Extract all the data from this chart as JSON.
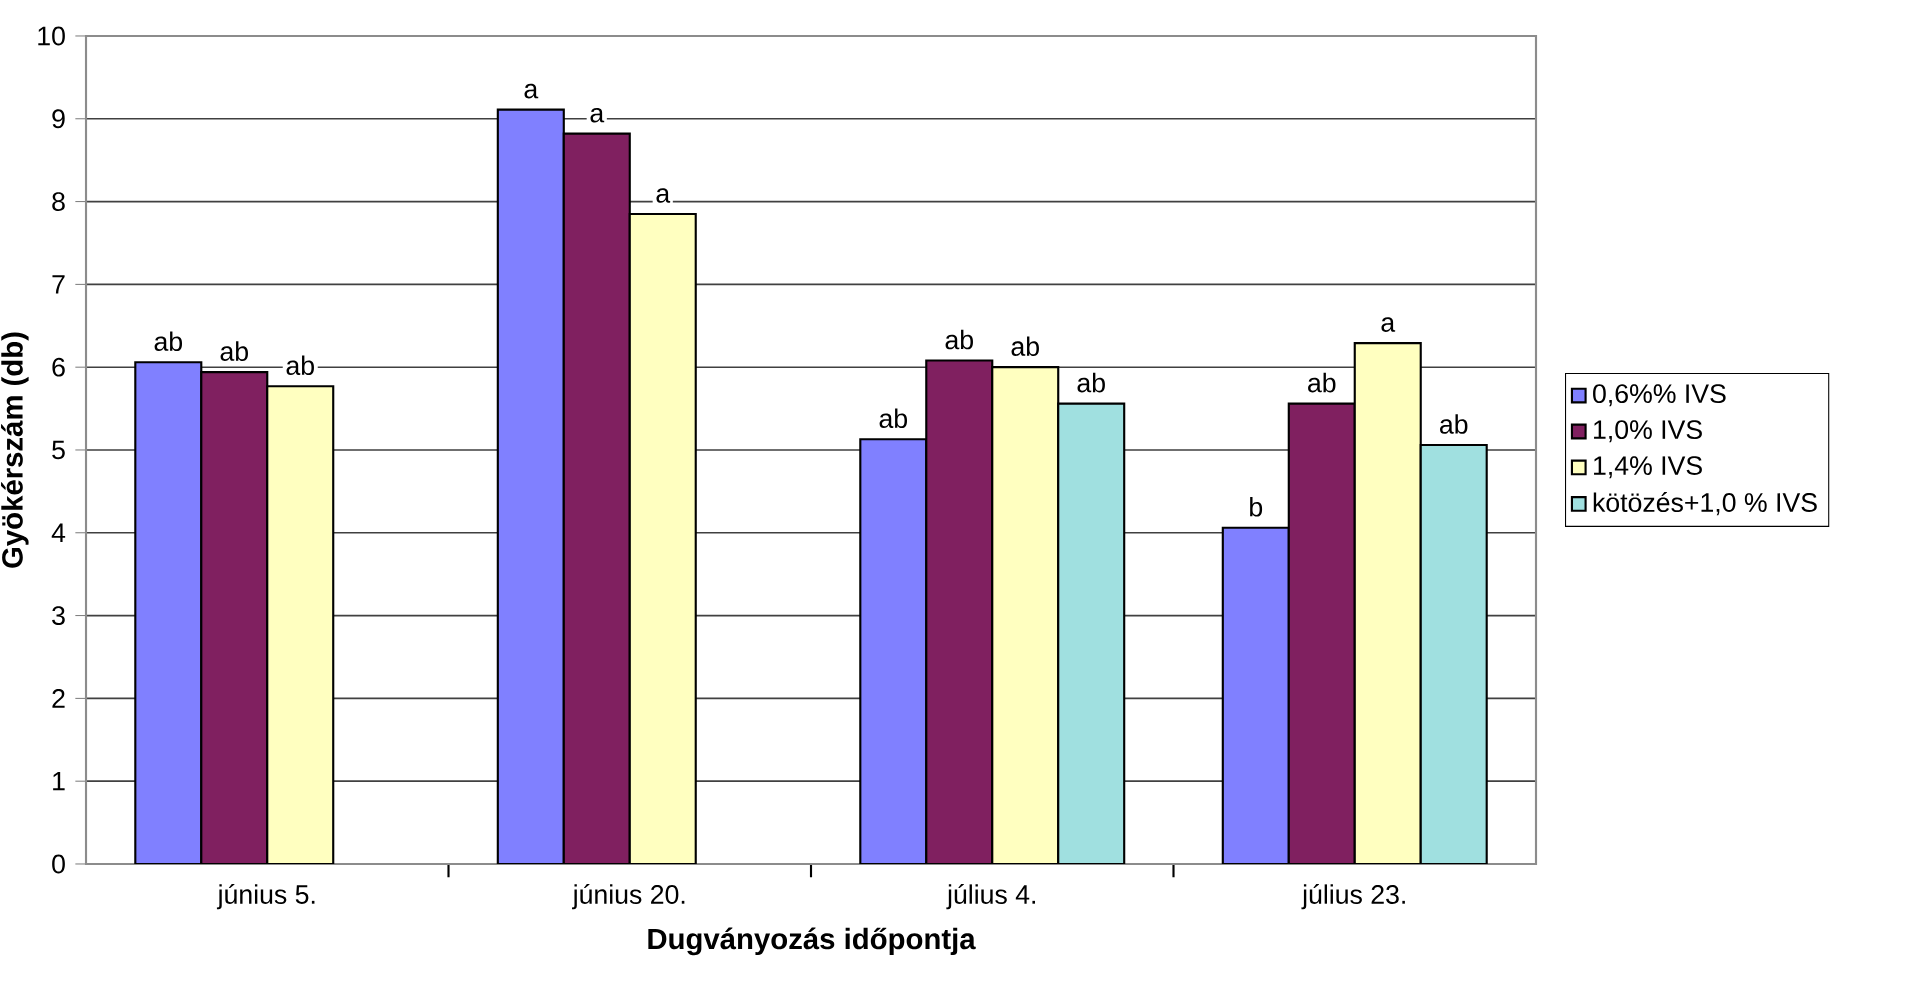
{
  "chart_data": {
    "type": "bar",
    "xlabel": "Dugványozás időpontja",
    "ylabel": "Gyökérszám (db)",
    "categories": [
      "június 5.",
      "június 20.",
      "július 4.",
      "július 23."
    ],
    "series": [
      {
        "name": "0,6%% IVS",
        "color": "#8080ff",
        "values": [
          6.06,
          9.11,
          5.13,
          4.06
        ],
        "value_labels": [
          "ab",
          "a",
          "ab",
          "b"
        ]
      },
      {
        "name": "1,0% IVS",
        "color": "#802060",
        "values": [
          5.94,
          8.82,
          6.08,
          5.56
        ],
        "value_labels": [
          "ab",
          "a",
          "ab",
          "ab"
        ]
      },
      {
        "name": "1,4% IVS",
        "color": "#ffffc0",
        "values": [
          5.77,
          7.85,
          6.0,
          6.29
        ],
        "value_labels": [
          "ab",
          "a",
          "ab",
          "a"
        ]
      },
      {
        "name": "kötözés+1,0 % IVS",
        "color": "#a0e0e0",
        "values": [
          null,
          null,
          5.56,
          5.06
        ],
        "value_labels": [
          null,
          null,
          "ab",
          "ab"
        ]
      }
    ],
    "ylim": [
      0,
      10
    ],
    "yticks": [
      0,
      1,
      2,
      3,
      4,
      5,
      6,
      7,
      8,
      9,
      10
    ],
    "grid": "y",
    "legend": "right"
  }
}
